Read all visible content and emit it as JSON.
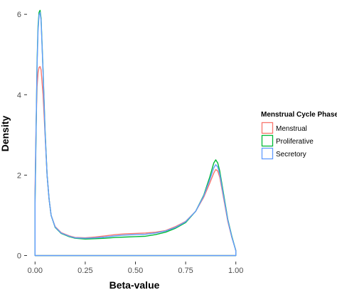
{
  "chart_data": {
    "type": "line",
    "xlabel": "Beta-value",
    "ylabel": "Density",
    "xlim": [
      -0.04,
      1.04
    ],
    "ylim": [
      -0.15,
      6.25
    ],
    "x_ticks": [
      "0.00",
      "0.25",
      "0.50",
      "0.75",
      "1.00"
    ],
    "x_tick_values": [
      0,
      0.25,
      0.5,
      0.75,
      1.0
    ],
    "y_ticks": [
      "0",
      "2",
      "4",
      "6"
    ],
    "y_tick_values": [
      0,
      2,
      4,
      6
    ],
    "grid": false,
    "legend": {
      "title": "Menstrual Cycle Phase",
      "position": "right",
      "entries": [
        "Menstrual",
        "Proliferative",
        "Secretory"
      ]
    },
    "series": [
      {
        "name": "Menstrual",
        "color": "#F8766D",
        "x": [
          0.0,
          0.005,
          0.01,
          0.015,
          0.02,
          0.025,
          0.03,
          0.04,
          0.05,
          0.06,
          0.07,
          0.08,
          0.1,
          0.13,
          0.17,
          0.2,
          0.25,
          0.3,
          0.35,
          0.4,
          0.45,
          0.5,
          0.55,
          0.6,
          0.65,
          0.7,
          0.75,
          0.8,
          0.84,
          0.87,
          0.89,
          0.9,
          0.91,
          0.92,
          0.94,
          0.96,
          0.98,
          1.0
        ],
        "y": [
          1.6,
          3.2,
          4.2,
          4.55,
          4.68,
          4.7,
          4.62,
          4.0,
          3.0,
          2.0,
          1.4,
          1.0,
          0.72,
          0.57,
          0.49,
          0.45,
          0.44,
          0.46,
          0.49,
          0.52,
          0.54,
          0.55,
          0.56,
          0.58,
          0.62,
          0.72,
          0.85,
          1.1,
          1.45,
          1.8,
          2.05,
          2.14,
          2.1,
          1.95,
          1.4,
          0.85,
          0.45,
          0.13
        ]
      },
      {
        "name": "Proliferative",
        "color": "#00BA38",
        "x": [
          0.0,
          0.005,
          0.01,
          0.015,
          0.02,
          0.025,
          0.03,
          0.04,
          0.05,
          0.06,
          0.07,
          0.08,
          0.1,
          0.13,
          0.17,
          0.2,
          0.25,
          0.3,
          0.35,
          0.4,
          0.45,
          0.5,
          0.55,
          0.6,
          0.65,
          0.7,
          0.75,
          0.8,
          0.84,
          0.87,
          0.89,
          0.9,
          0.91,
          0.92,
          0.94,
          0.96,
          0.98,
          1.0
        ],
        "y": [
          1.3,
          3.0,
          4.8,
          5.7,
          6.05,
          6.1,
          5.9,
          4.6,
          3.1,
          2.0,
          1.4,
          1.0,
          0.7,
          0.55,
          0.47,
          0.43,
          0.41,
          0.42,
          0.43,
          0.45,
          0.46,
          0.47,
          0.48,
          0.52,
          0.58,
          0.68,
          0.82,
          1.1,
          1.5,
          1.95,
          2.3,
          2.38,
          2.3,
          2.1,
          1.5,
          0.9,
          0.48,
          0.12
        ]
      },
      {
        "name": "Secretory",
        "color": "#619CFF",
        "x": [
          0.0,
          0.005,
          0.01,
          0.015,
          0.02,
          0.025,
          0.03,
          0.04,
          0.05,
          0.06,
          0.07,
          0.08,
          0.1,
          0.13,
          0.17,
          0.2,
          0.25,
          0.3,
          0.35,
          0.4,
          0.45,
          0.5,
          0.55,
          0.6,
          0.65,
          0.7,
          0.75,
          0.8,
          0.84,
          0.87,
          0.89,
          0.9,
          0.91,
          0.92,
          0.94,
          0.96,
          0.98,
          1.0
        ],
        "y": [
          1.4,
          3.1,
          4.7,
          5.6,
          5.98,
          6.05,
          5.85,
          4.55,
          3.05,
          2.0,
          1.4,
          1.0,
          0.71,
          0.56,
          0.48,
          0.44,
          0.43,
          0.44,
          0.46,
          0.49,
          0.51,
          0.52,
          0.53,
          0.56,
          0.61,
          0.7,
          0.84,
          1.1,
          1.48,
          1.88,
          2.18,
          2.26,
          2.2,
          2.02,
          1.45,
          0.88,
          0.46,
          0.12
        ]
      }
    ]
  }
}
